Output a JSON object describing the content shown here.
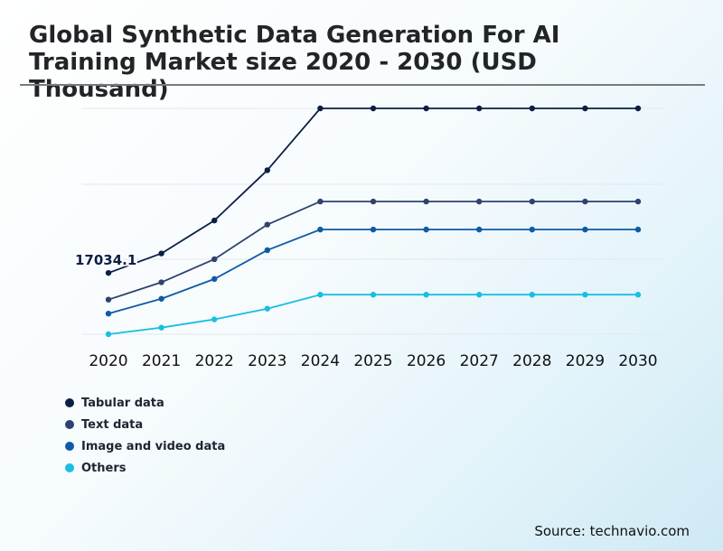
{
  "chart_data": {
    "type": "line",
    "title": "Global Synthetic Data Generation For AI Training Market size 2020 - 2030 (USD Thousand)",
    "categories": [
      "2020",
      "2021",
      "2022",
      "2023",
      "2024",
      "2025",
      "2026",
      "2027",
      "2028",
      "2029",
      "2030"
    ],
    "series": [
      {
        "name": "Tabular data",
        "color": "#0b1f45",
        "values": [
          17034.1,
          19400,
          23400,
          29500,
          37000,
          37000,
          37000,
          37000,
          37000,
          37000,
          37000
        ]
      },
      {
        "name": "Text data",
        "color": "#2f426e",
        "values": [
          13800,
          15900,
          18700,
          22900,
          25700,
          25700,
          25700,
          25700,
          25700,
          25700,
          25700
        ]
      },
      {
        "name": "Image and video data",
        "color": "#0d5ba6",
        "values": [
          12100,
          13900,
          16300,
          19800,
          22300,
          22300,
          22300,
          22300,
          22300,
          22300,
          22300
        ]
      },
      {
        "name": "Others",
        "color": "#19bfe0",
        "values": [
          9600,
          10400,
          11400,
          12700,
          14400,
          14400,
          14400,
          14400,
          14400,
          14400,
          14400
        ]
      }
    ],
    "annotations": [
      {
        "series": 0,
        "index": 0,
        "text": "17034.1"
      }
    ],
    "ylim": [
      9600,
      37000
    ],
    "xlabel": "",
    "ylabel": "",
    "grid": true,
    "legend": "bottom-left"
  },
  "source": "Source: technavio.com"
}
